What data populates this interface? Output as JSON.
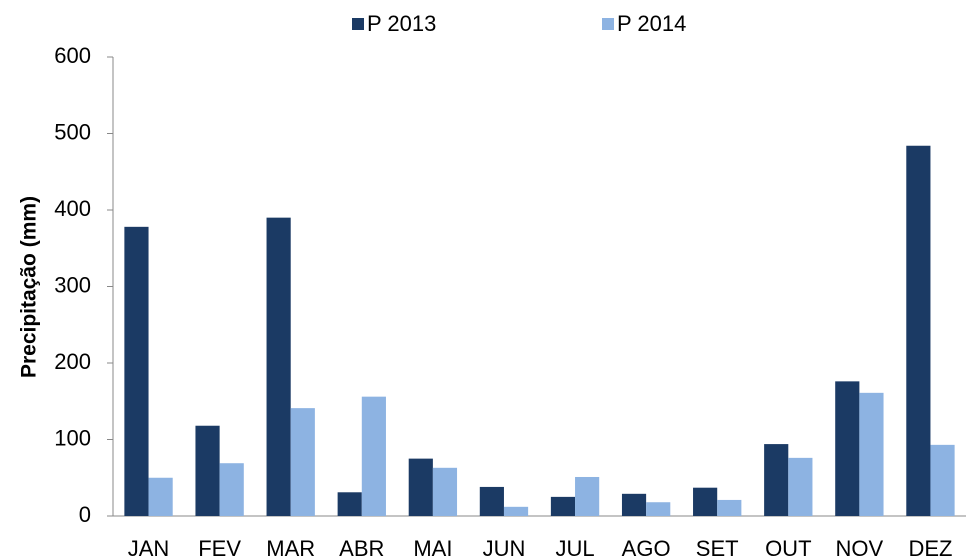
{
  "chart_data": {
    "type": "bar",
    "y_label": "Precipitação (mm)",
    "categories": [
      "JAN",
      "FEV",
      "MAR",
      "ABR",
      "MAI",
      "JUN",
      "JUL",
      "AGO",
      "SET",
      "OUT",
      "NOV",
      "DEZ"
    ],
    "series": [
      {
        "name": "P 2013",
        "color": "#1b3a64",
        "values": [
          378,
          118,
          390,
          31,
          75,
          38,
          25,
          29,
          37,
          94,
          176,
          484
        ]
      },
      {
        "name": "P 2014",
        "color": "#8db3e2",
        "values": [
          50,
          69,
          141,
          156,
          63,
          12,
          51,
          18,
          21,
          76,
          161,
          93
        ]
      }
    ],
    "ylim": [
      0,
      600
    ],
    "yticks": [
      0,
      100,
      200,
      300,
      400,
      500,
      600
    ],
    "grid": false
  }
}
